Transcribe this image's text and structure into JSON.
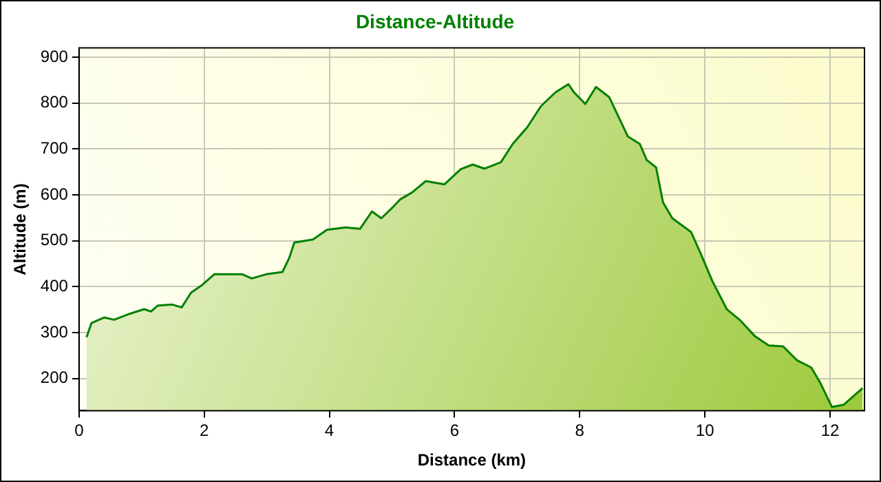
{
  "chart_data": {
    "type": "area",
    "title": "Distance-Altitude",
    "xlabel": "Distance (km)",
    "ylabel": "Altitude (m)",
    "xlim": [
      0,
      12.55
    ],
    "ylim": [
      130,
      920
    ],
    "xticks": [
      0,
      2,
      4,
      6,
      8,
      10,
      12
    ],
    "yticks": [
      200,
      300,
      400,
      500,
      600,
      700,
      800,
      900
    ],
    "grid": true,
    "legend": false,
    "x": [
      0.12,
      0.2,
      0.4,
      0.56,
      0.81,
      1.04,
      1.15,
      1.26,
      1.49,
      1.64,
      1.79,
      1.97,
      2.16,
      2.61,
      2.76,
      2.99,
      3.25,
      3.36,
      3.44,
      3.74,
      3.96,
      4.26,
      4.49,
      4.68,
      4.83,
      5.02,
      5.13,
      5.32,
      5.54,
      5.84,
      6.1,
      6.29,
      6.48,
      6.74,
      6.93,
      7.16,
      7.38,
      7.61,
      7.82,
      7.91,
      8.09,
      8.26,
      8.47,
      8.77,
      8.96,
      9.07,
      9.22,
      9.33,
      9.48,
      9.63,
      9.78,
      9.93,
      10.12,
      10.35,
      10.57,
      10.8,
      11.02,
      11.25,
      11.47,
      11.7,
      11.85,
      12.03,
      12.22,
      12.52
    ],
    "series": [
      {
        "color": "#008000",
        "values": [
          290,
          321,
          333,
          328,
          341,
          351,
          346,
          359,
          361,
          355,
          387,
          404,
          427,
          427,
          418,
          427,
          432,
          463,
          496,
          503,
          524,
          529,
          526,
          564,
          549,
          574,
          590,
          605,
          630,
          623,
          656,
          666,
          657,
          671,
          711,
          747,
          793,
          823,
          841,
          823,
          798,
          835,
          813,
          727,
          711,
          676,
          660,
          584,
          549,
          534,
          519,
          473,
          412,
          351,
          326,
          292,
          272,
          270,
          240,
          224,
          189,
          138,
          143,
          179
        ]
      }
    ]
  }
}
